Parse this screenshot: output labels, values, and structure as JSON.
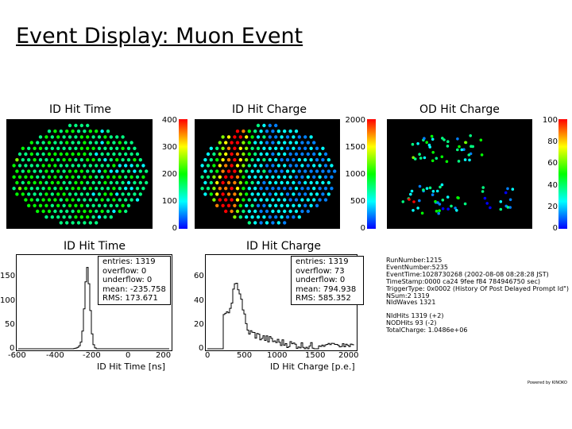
{
  "slide": {
    "title": "Event Display: Muon Event"
  },
  "displays": {
    "id_time": {
      "title": "ID Hit Time",
      "scale": [
        "400",
        "300",
        "200",
        "100",
        "0"
      ]
    },
    "id_charge": {
      "title": "ID Hit Charge",
      "scale": [
        "2000",
        "1500",
        "1000",
        "500",
        "0"
      ]
    },
    "od_charge": {
      "title": "OD Hit Charge",
      "scale": [
        "100",
        "80",
        "60",
        "40",
        "20",
        "0"
      ]
    }
  },
  "histograms": {
    "time": {
      "title": "ID Hit Time",
      "xlabel": "ID Hit Time [ns]",
      "x_ticks": [
        "-600",
        "-400",
        "-200",
        "0",
        "200"
      ],
      "y_ticks": [
        "150",
        "100",
        "50",
        "0"
      ],
      "stats": [
        "entries: 1319",
        "overflow: 0",
        "underflow: 0",
        "mean: -235.758",
        "RMS: 173.671"
      ]
    },
    "charge": {
      "title": "ID Hit Charge",
      "xlabel": "ID Hit Charge [p.e.]",
      "x_ticks": [
        "0",
        "500",
        "1000",
        "1500",
        "2000"
      ],
      "y_ticks": [
        "60",
        "40",
        "20",
        "0"
      ],
      "stats": [
        "entries: 1319",
        "overflow: 73",
        "underflow: 0",
        "mean: 794.938",
        "RMS: 585.352"
      ]
    }
  },
  "run_info": [
    "RunNumber:1215",
    "EventNumber:5235",
    "EventTime:1028730268 (2002-08-08 08:28:28 JST)",
    "TimeStamp:0000 ca24 9fee f84 784946750 sec)",
    "TriggerType: 0x0002 (History Of Post Delayed Prompt Id\")",
    "NSum:2 1319",
    "NIdWaves 1321",
    "",
    "NIdHits 1319 (+2)",
    "NODHits 93 (-2)",
    "TotalCharge: 1.0486e+06"
  ],
  "footer": {
    "powered": "Powered by KINOKO"
  },
  "colors": {
    "palette": [
      "#0000ff",
      "#0080ff",
      "#00ffff",
      "#00ff80",
      "#00ff00",
      "#80ff00",
      "#ffff00",
      "#ff8000",
      "#ff0000"
    ],
    "hist_line": "#000000",
    "display_background": "#000000"
  }
}
